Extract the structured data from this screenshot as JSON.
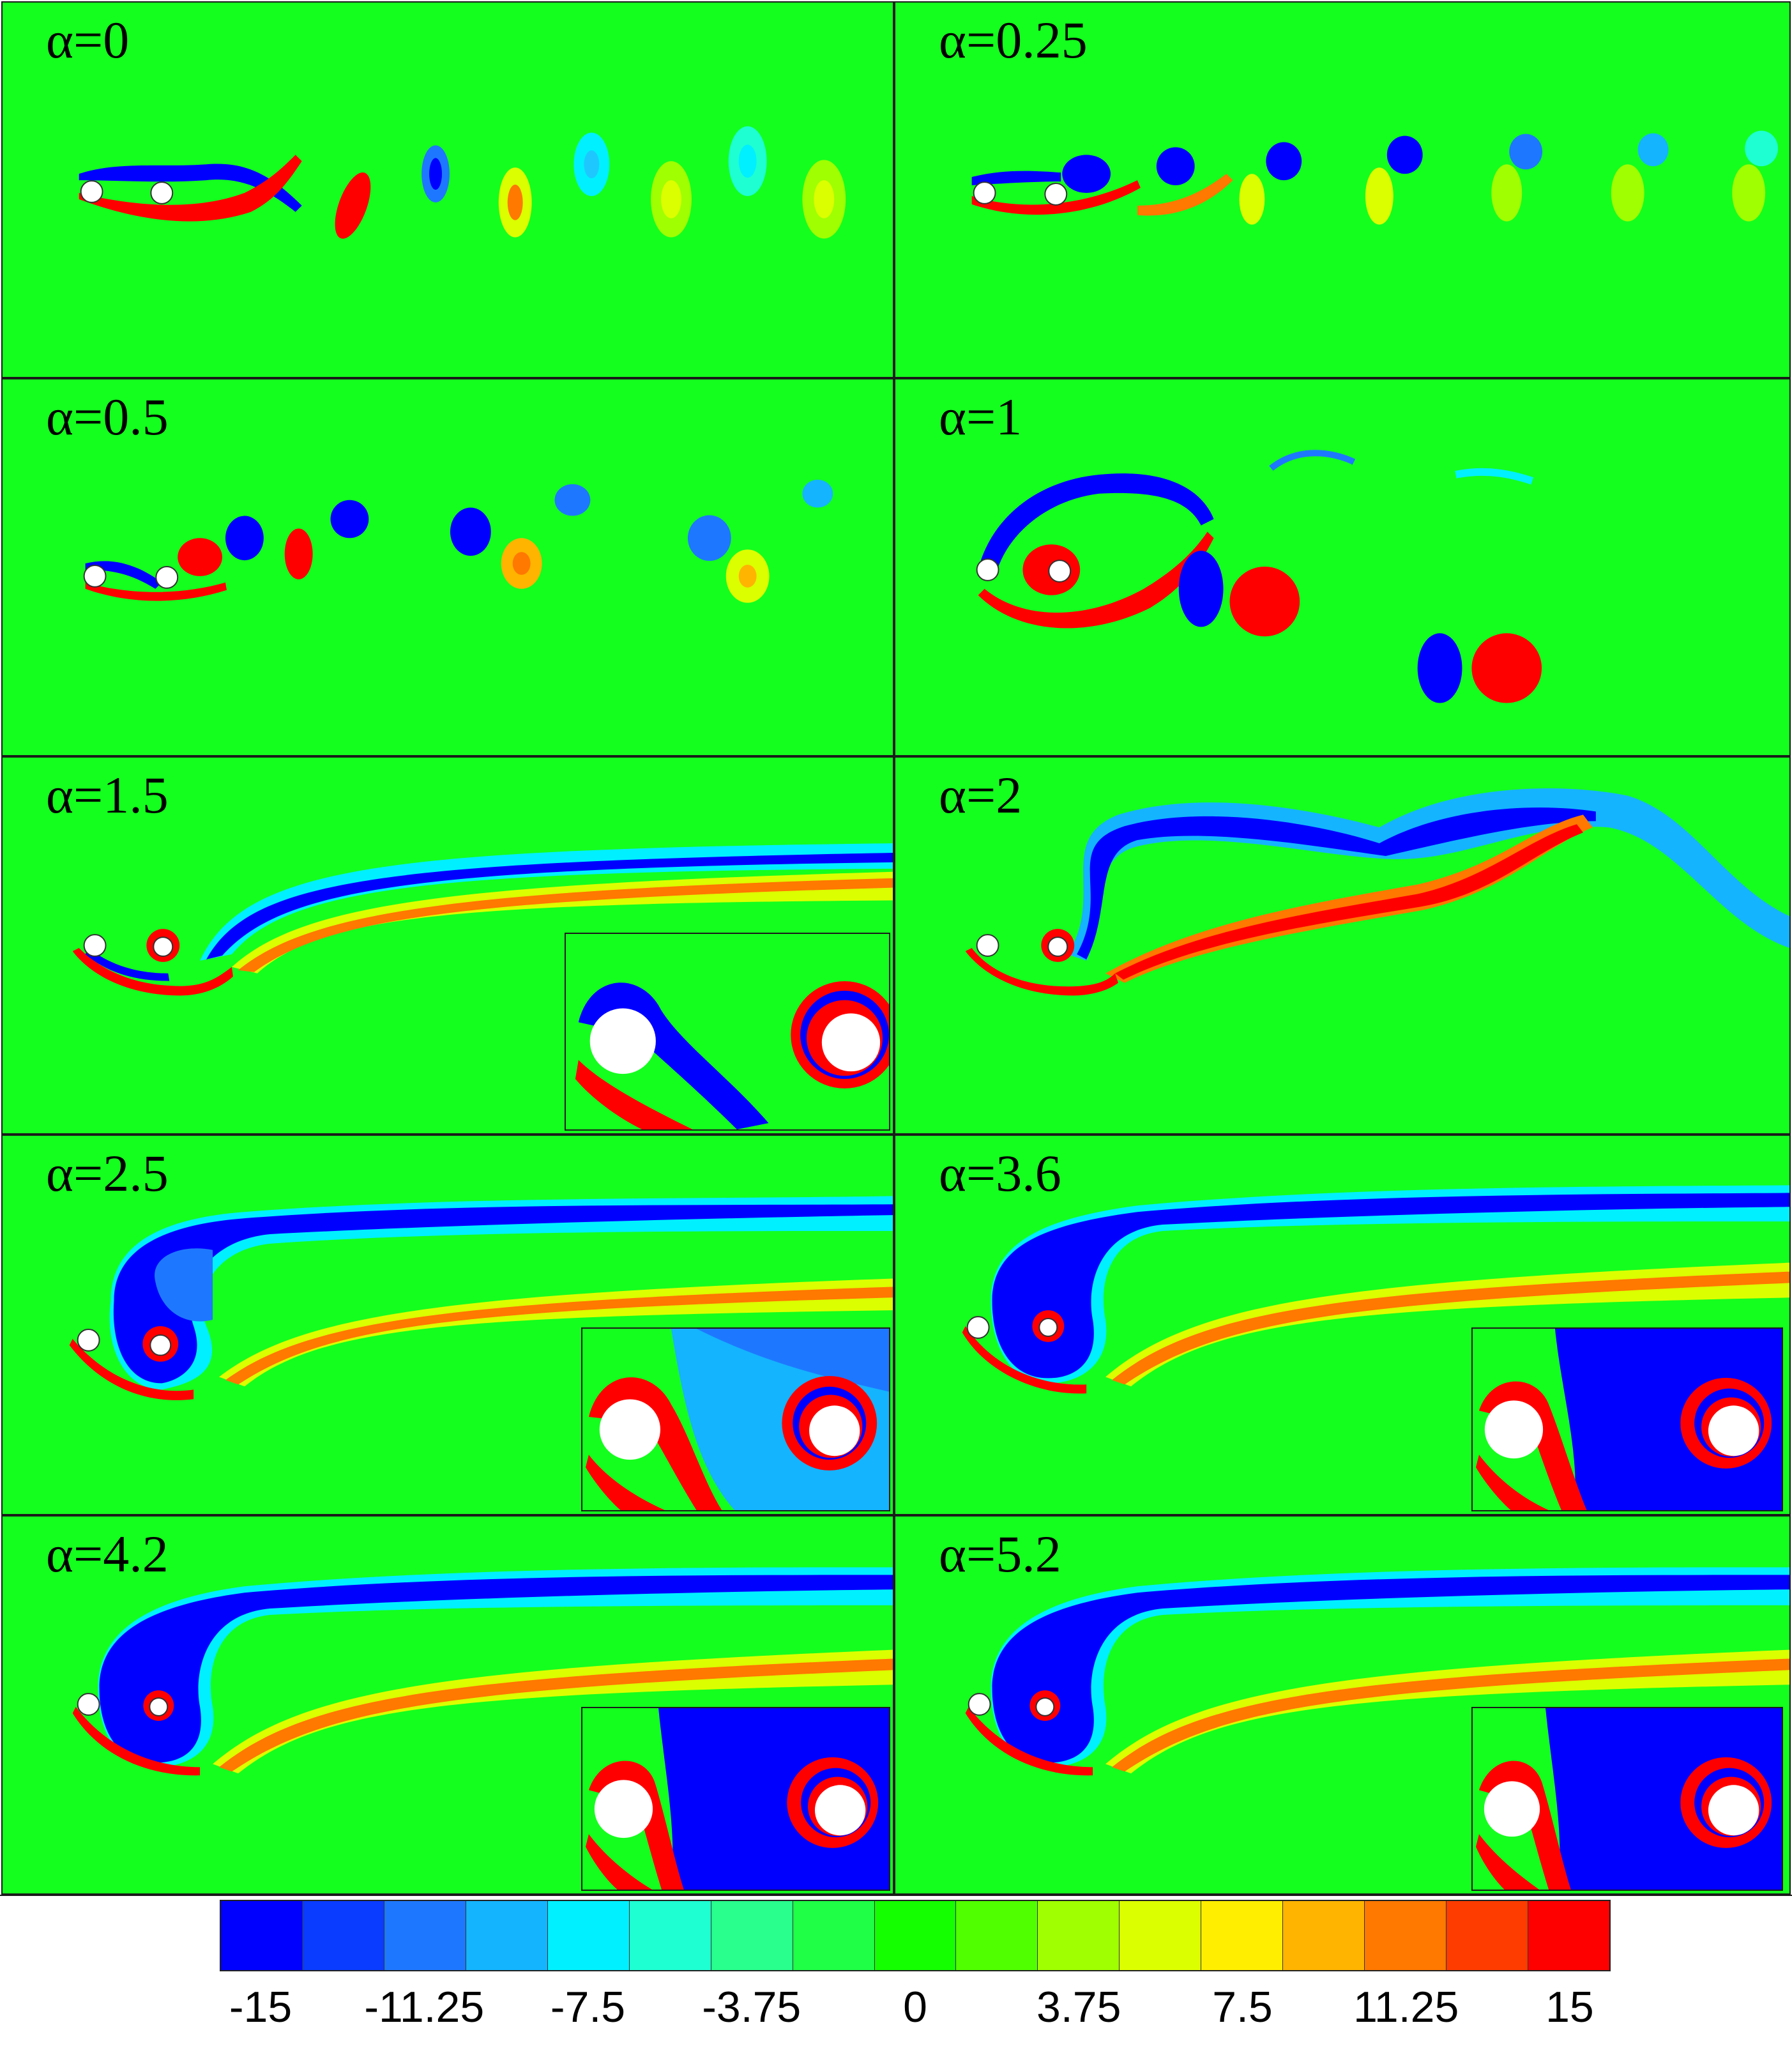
{
  "panels": [
    {
      "label": "α=0"
    },
    {
      "label": "α=0.25"
    },
    {
      "label": "α=0.5"
    },
    {
      "label": "α=1"
    },
    {
      "label": "α=1.5"
    },
    {
      "label": "α=2"
    },
    {
      "label": "α=2.5"
    },
    {
      "label": "α=3.6"
    },
    {
      "label": "α=4.2"
    },
    {
      "label": "α=5.2"
    }
  ],
  "colorbar": {
    "ticks": [
      "-15",
      "-11.25",
      "-7.5",
      "-3.75",
      "0",
      "3.75",
      "7.5",
      "11.25",
      "15"
    ],
    "levels": [
      "#0000ff",
      "#0a3cff",
      "#1e78ff",
      "#14b4ff",
      "#00f0ff",
      "#1effd2",
      "#28ff8c",
      "#1eff46",
      "#14ff00",
      "#50ff00",
      "#a0ff00",
      "#dcff00",
      "#ffee00",
      "#ffb400",
      "#ff7800",
      "#ff3c00",
      "#ff0000"
    ]
  },
  "colors": {
    "background": "#14ff1e",
    "negative": "#0000ff",
    "positive": "#ff0000",
    "cylinder": "#ffffff"
  }
}
